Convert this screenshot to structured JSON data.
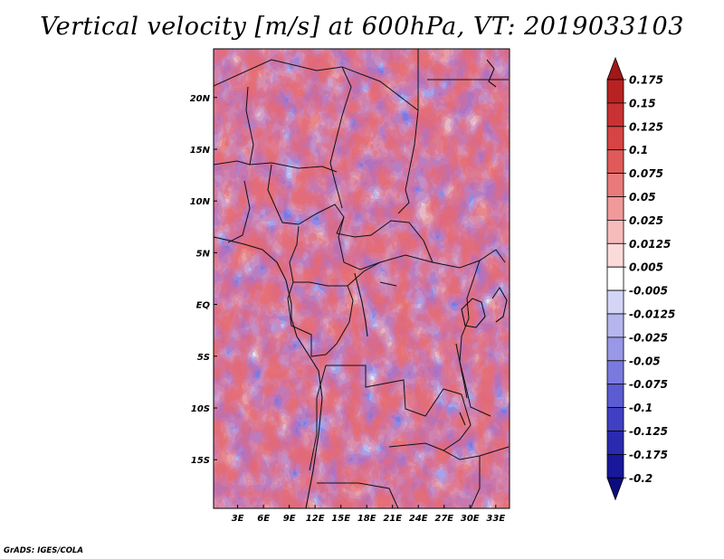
{
  "chart_data": {
    "type": "heatmap",
    "title": "Vertical velocity [m/s] at 600hPa, VT: 2019033103",
    "variable": "Vertical velocity",
    "units": "m/s",
    "level": "600hPa",
    "valid_time": "2019033103",
    "x_ticks": [
      {
        "value": 3,
        "label": "3E"
      },
      {
        "value": 6,
        "label": "6E"
      },
      {
        "value": 9,
        "label": "9E"
      },
      {
        "value": 12,
        "label": "12E"
      },
      {
        "value": 15,
        "label": "15E"
      },
      {
        "value": 18,
        "label": "18E"
      },
      {
        "value": 21,
        "label": "21E"
      },
      {
        "value": 24,
        "label": "24E"
      },
      {
        "value": 27,
        "label": "27E"
      },
      {
        "value": 30,
        "label": "30E"
      },
      {
        "value": 33,
        "label": "33E"
      }
    ],
    "y_ticks": [
      {
        "value": 20,
        "label": "20N"
      },
      {
        "value": 15,
        "label": "15N"
      },
      {
        "value": 10,
        "label": "10N"
      },
      {
        "value": 5,
        "label": "5N"
      },
      {
        "value": 0,
        "label": "EQ"
      },
      {
        "value": -5,
        "label": "5S"
      },
      {
        "value": -10,
        "label": "10S"
      },
      {
        "value": -15,
        "label": "15S"
      }
    ],
    "x_range": [
      0.2,
      34.6
    ],
    "y_range": [
      -19.7,
      24.7
    ],
    "colorbar": {
      "labels": [
        "0.175",
        "0.15",
        "0.125",
        "0.1",
        "0.075",
        "0.05",
        "0.025",
        "0.0125",
        "0.005",
        "-0.005",
        "-0.0125",
        "-0.025",
        "-0.05",
        "-0.075",
        "-0.1",
        "-0.125",
        "-0.175",
        "-0.2"
      ],
      "colors": [
        "#a01818",
        "#b82222",
        "#c83232",
        "#d64444",
        "#e05a5a",
        "#e87a7a",
        "#f09a9a",
        "#f6bcbc",
        "#fbdada",
        "#ffffff",
        "#d4d4f6",
        "#b6b6ee",
        "#9898e6",
        "#7a7ade",
        "#5c5cd2",
        "#4040c2",
        "#2a2ab0",
        "#18189a",
        "#0c0c80"
      ]
    }
  },
  "credit": "GrADS: IGES/COLA"
}
